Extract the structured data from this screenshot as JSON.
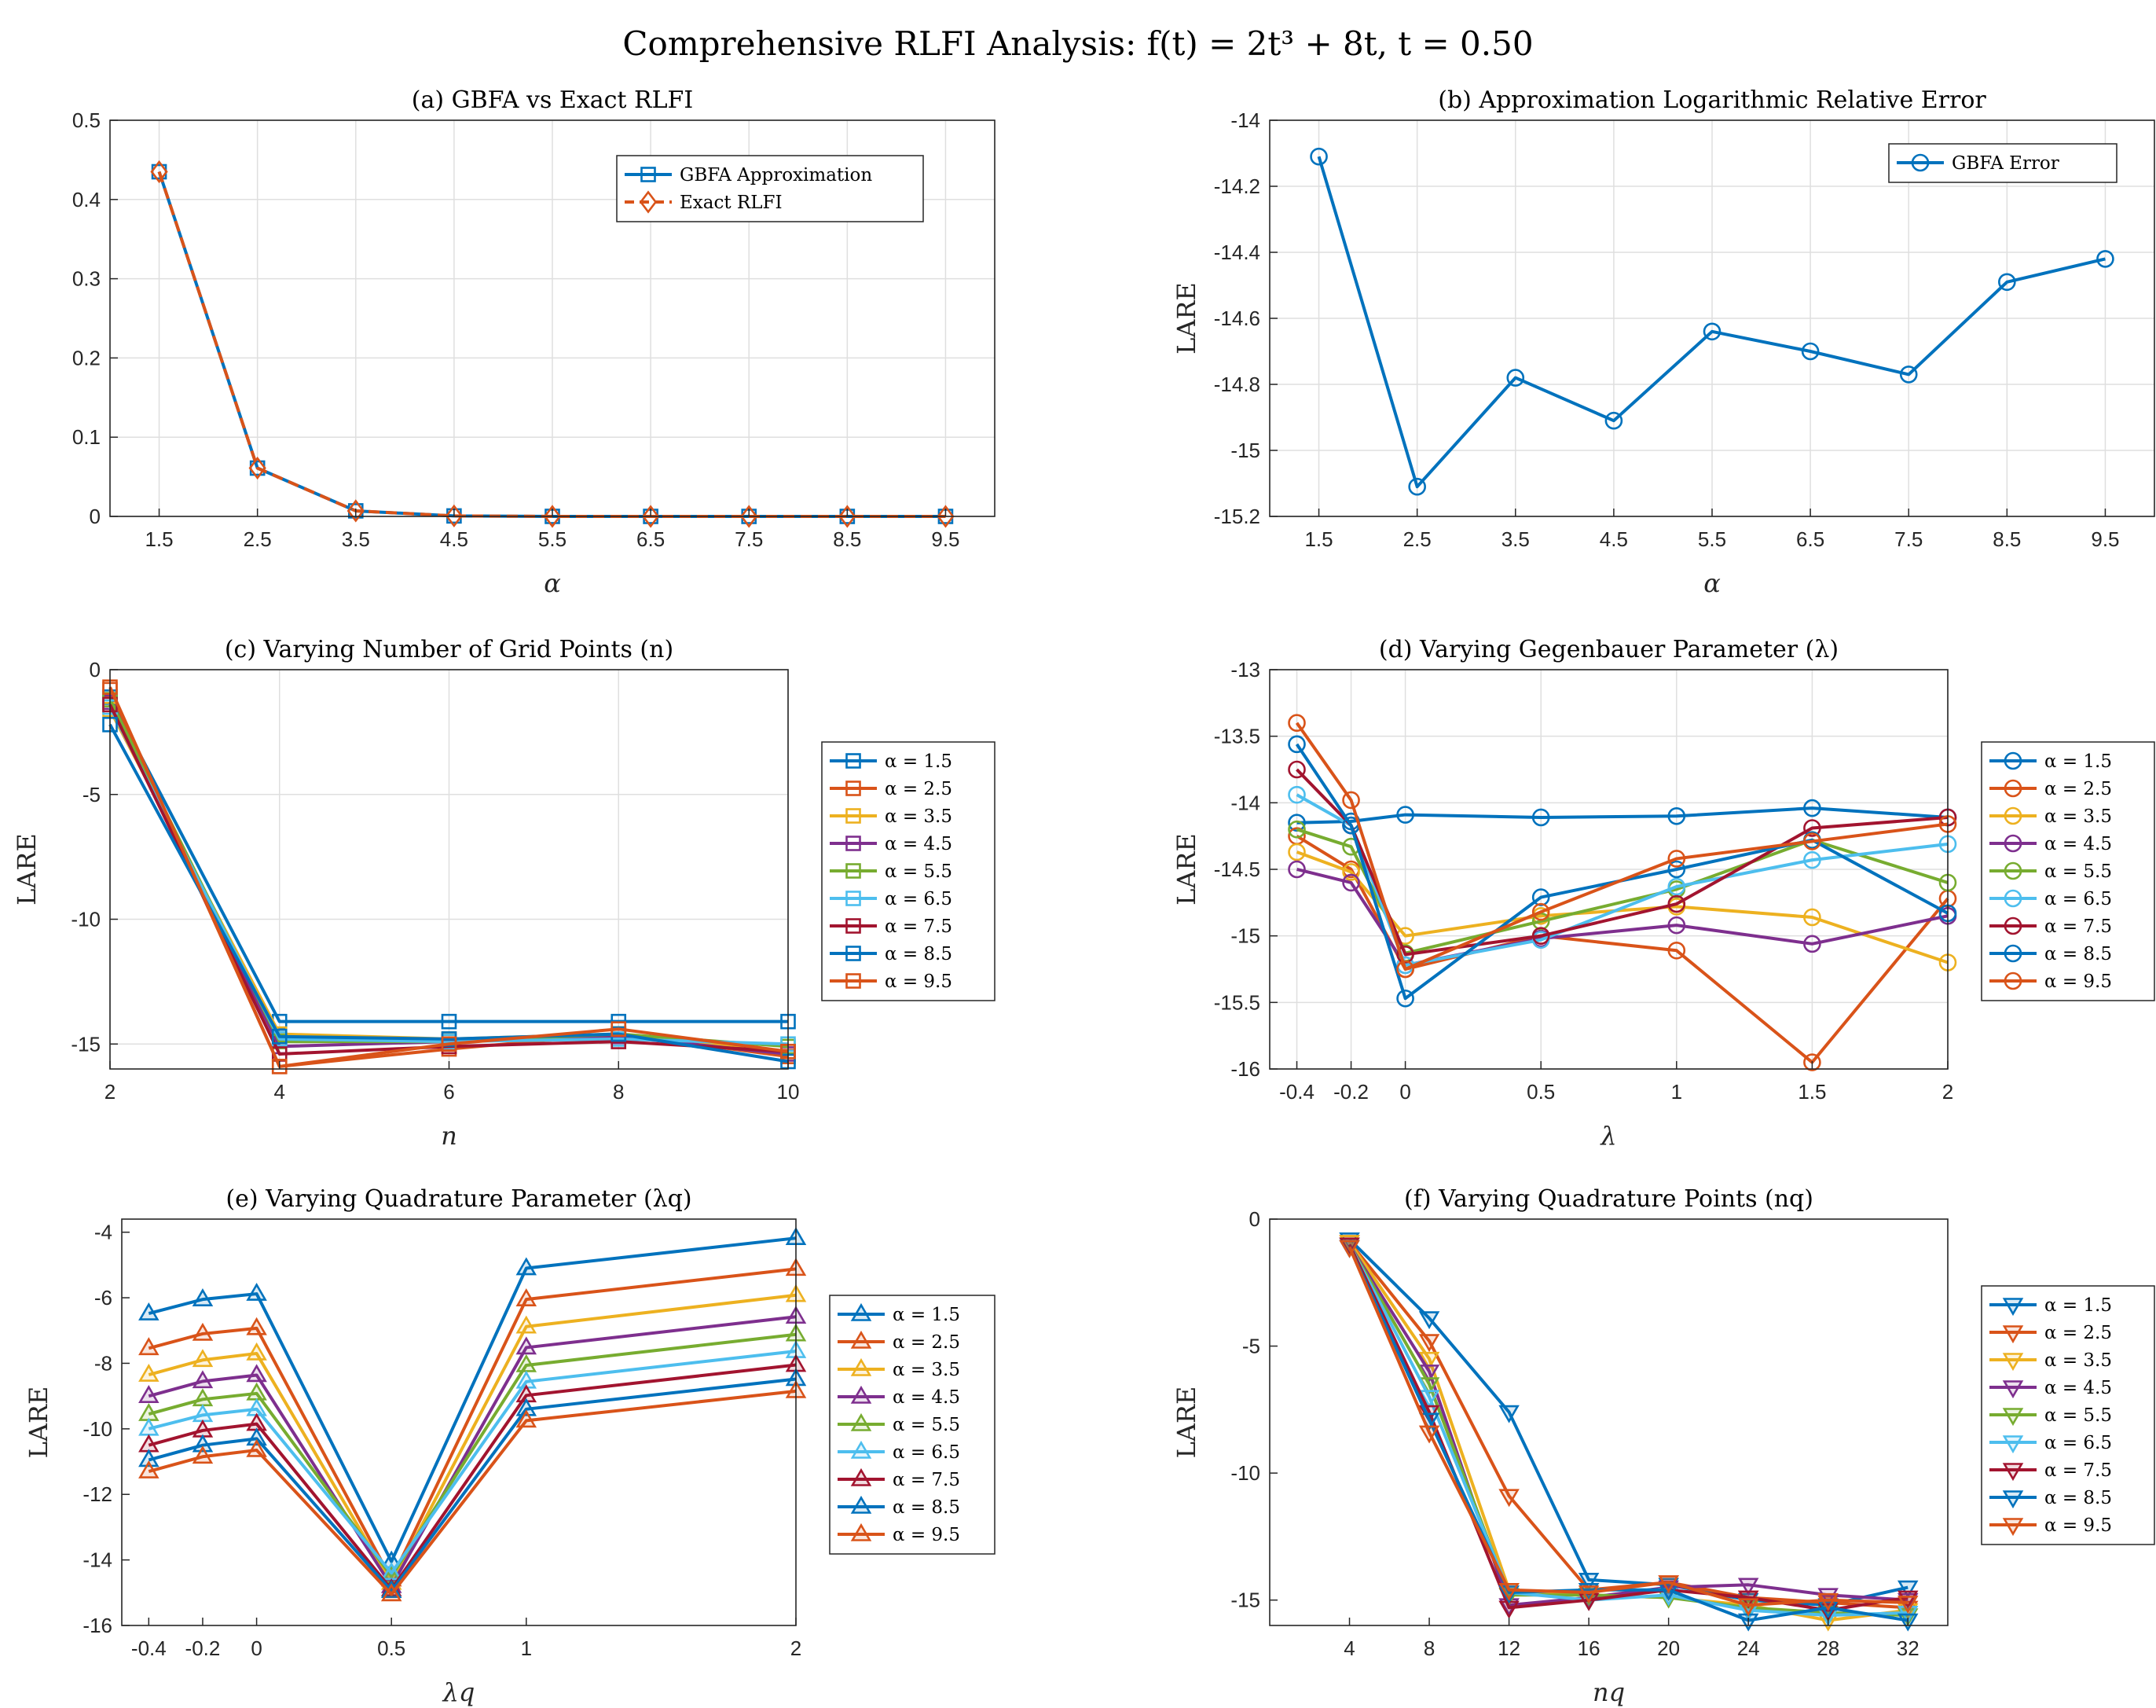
{
  "figure": {
    "title": "Comprehensive RLFI Analysis:  f(t) = 2t³ + 8t, t = 0.50"
  },
  "colors": [
    "#0072BD",
    "#D95319",
    "#EDB120",
    "#7E2F8E",
    "#77AC30",
    "#4DBEEE",
    "#A2142F",
    "#0072BD",
    "#D95319"
  ],
  "chart_data": [
    {
      "id": "a",
      "type": "line",
      "title": "(a) GBFA vs Exact RLFI",
      "xlabel": "α",
      "ylabel": "",
      "x": [
        1.5,
        2.5,
        3.5,
        4.5,
        5.5,
        6.5,
        7.5,
        8.5,
        9.5
      ],
      "x_ticks": [
        "1.5",
        "2.5",
        "3.5",
        "4.5",
        "5.5",
        "6.5",
        "7.5",
        "8.5",
        "9.5"
      ],
      "y_ticks": [
        "0",
        "0.1",
        "0.2",
        "0.3",
        "0.4",
        "0.5"
      ],
      "xlim": [
        1,
        10
      ],
      "ylim": [
        0,
        0.5
      ],
      "grid": true,
      "legend": "top-right",
      "series": [
        {
          "name": "GBFA Approximation",
          "color": "#0072BD",
          "marker": "square",
          "dashed": false,
          "values": [
            0.435,
            0.061,
            0.007,
            0.0006,
            4e-05,
            2e-06,
            0.0,
            0.0,
            0.0
          ]
        },
        {
          "name": "Exact RLFI",
          "color": "#D95319",
          "marker": "diamond",
          "dashed": true,
          "values": [
            0.435,
            0.061,
            0.007,
            0.0006,
            4e-05,
            2e-06,
            0.0,
            0.0,
            0.0
          ]
        }
      ]
    },
    {
      "id": "b",
      "type": "line",
      "title": "(b) Approximation Logarithmic Relative Error",
      "xlabel": "α",
      "ylabel": "LARE",
      "x": [
        1.5,
        2.5,
        3.5,
        4.5,
        5.5,
        6.5,
        7.5,
        8.5,
        9.5
      ],
      "x_ticks": [
        "1.5",
        "2.5",
        "3.5",
        "4.5",
        "5.5",
        "6.5",
        "7.5",
        "8.5",
        "9.5"
      ],
      "y_ticks": [
        "-15.2",
        "-15",
        "-14.8",
        "-14.6",
        "-14.4",
        "-14.2",
        "-14"
      ],
      "xlim": [
        1,
        10
      ],
      "ylim": [
        -15.2,
        -14
      ],
      "grid": true,
      "legend": "top-right",
      "series": [
        {
          "name": "GBFA Error",
          "color": "#0072BD",
          "marker": "circle",
          "dashed": false,
          "values": [
            -14.11,
            -15.11,
            -14.78,
            -14.91,
            -14.64,
            -14.7,
            -14.77,
            -14.49,
            -14.42
          ]
        }
      ]
    },
    {
      "id": "c",
      "type": "line",
      "title": "(c) Varying Number of Grid Points (n)",
      "xlabel": "n",
      "ylabel": "LARE",
      "x": [
        2,
        4,
        6,
        8,
        10
      ],
      "x_ticks": [
        "2",
        "4",
        "6",
        "8",
        "10"
      ],
      "y_ticks": [
        "-15",
        "-10",
        "-5",
        "0"
      ],
      "xlim": [
        2,
        10
      ],
      "ylim": [
        -16,
        0
      ],
      "grid": true,
      "legend": "outside-right",
      "marker": "square",
      "series": [
        {
          "name": "α = 1.5",
          "values": [
            -1.1,
            -14.1,
            -14.1,
            -14.1,
            -14.1
          ]
        },
        {
          "name": "α = 2.5",
          "values": [
            -0.8,
            -15.9,
            -15.2,
            -14.6,
            -15.5
          ]
        },
        {
          "name": "α = 3.5",
          "values": [
            -1.6,
            -14.6,
            -14.8,
            -14.6,
            -15.3
          ]
        },
        {
          "name": "α = 4.5",
          "values": [
            -1.3,
            -15.1,
            -14.9,
            -14.7,
            -15.4
          ]
        },
        {
          "name": "α = 5.5",
          "values": [
            -1.2,
            -14.9,
            -14.9,
            -14.6,
            -15.1
          ]
        },
        {
          "name": "α = 6.5",
          "values": [
            -1.5,
            -14.8,
            -14.9,
            -14.8,
            -15.0
          ]
        },
        {
          "name": "α = 7.5",
          "values": [
            -1.4,
            -15.4,
            -15.1,
            -14.9,
            -15.3
          ]
        },
        {
          "name": "α = 8.5",
          "values": [
            -2.2,
            -14.7,
            -14.8,
            -14.6,
            -15.7
          ]
        },
        {
          "name": "α = 9.5",
          "values": [
            -0.7,
            -15.9,
            -15.0,
            -14.4,
            -15.3
          ]
        }
      ]
    },
    {
      "id": "d",
      "type": "line",
      "title": "(d) Varying Gegenbauer Parameter (λ)",
      "xlabel": "λ",
      "ylabel": "LARE",
      "x": [
        -0.4,
        -0.2,
        0,
        0.5,
        1,
        1.5,
        2
      ],
      "x_ticks": [
        "-0.4",
        "-0.2",
        "0",
        "0.5",
        "1",
        "1.5",
        "2"
      ],
      "y_ticks": [
        "-16",
        "-15.5",
        "-15",
        "-14.5",
        "-14",
        "-13.5",
        "-13"
      ],
      "xlim": [
        -0.5,
        2
      ],
      "ylim": [
        -16,
        -13
      ],
      "grid": true,
      "legend": "outside-right",
      "marker": "circle",
      "series": [
        {
          "name": "α = 1.5",
          "values": [
            -14.15,
            -14.14,
            -14.09,
            -14.11,
            -14.1,
            -14.04,
            -14.11
          ]
        },
        {
          "name": "α = 2.5",
          "values": [
            -14.25,
            -14.5,
            -15.25,
            -15.0,
            -15.11,
            -15.95,
            -14.72
          ]
        },
        {
          "name": "α = 3.5",
          "values": [
            -14.37,
            -14.52,
            -15.0,
            -14.85,
            -14.78,
            -14.86,
            -15.2
          ]
        },
        {
          "name": "α = 4.5",
          "values": [
            -14.5,
            -14.6,
            -15.22,
            -15.02,
            -14.92,
            -15.06,
            -14.85
          ]
        },
        {
          "name": "α = 5.5",
          "values": [
            -14.2,
            -14.33,
            -15.13,
            -14.89,
            -14.65,
            -14.28,
            -14.6
          ]
        },
        {
          "name": "α = 6.5",
          "values": [
            -13.94,
            -14.17,
            -15.22,
            -15.03,
            -14.63,
            -14.43,
            -14.31
          ]
        },
        {
          "name": "α = 7.5",
          "values": [
            -13.75,
            -14.17,
            -15.14,
            -15.0,
            -14.76,
            -14.19,
            -14.11
          ]
        },
        {
          "name": "α = 8.5",
          "values": [
            -13.56,
            -14.17,
            -15.47,
            -14.71,
            -14.5,
            -14.28,
            -14.83
          ]
        },
        {
          "name": "α = 9.5",
          "values": [
            -13.4,
            -13.98,
            -15.25,
            -14.82,
            -14.42,
            -14.29,
            -14.16
          ]
        }
      ]
    },
    {
      "id": "e",
      "type": "line",
      "title": "(e) Varying Quadrature Parameter (λq)",
      "xlabel": "λq",
      "ylabel": "LARE",
      "x": [
        -0.4,
        -0.2,
        0,
        0.5,
        1,
        2
      ],
      "x_ticks": [
        "-0.4",
        "-0.2",
        "0",
        "0.5",
        "1",
        "2"
      ],
      "y_ticks": [
        "-16",
        "-14",
        "-12",
        "-10",
        "-8",
        "-6",
        "-4"
      ],
      "xlim": [
        -0.5,
        2
      ],
      "ylim": [
        -16,
        -3.6
      ],
      "grid": false,
      "legend": "outside-right",
      "marker": "triangle-up",
      "series": [
        {
          "name": "α = 1.5",
          "values": [
            -6.48,
            -6.05,
            -5.88,
            -14.05,
            -5.1,
            -4.18
          ]
        },
        {
          "name": "α = 2.5",
          "values": [
            -7.54,
            -7.1,
            -6.93,
            -14.6,
            -6.05,
            -5.12
          ]
        },
        {
          "name": "α = 3.5",
          "values": [
            -8.35,
            -7.9,
            -7.7,
            -14.7,
            -6.88,
            -5.92
          ]
        },
        {
          "name": "α = 4.5",
          "values": [
            -9.0,
            -8.55,
            -8.36,
            -14.8,
            -7.52,
            -6.58
          ]
        },
        {
          "name": "α = 5.5",
          "values": [
            -9.55,
            -9.1,
            -8.92,
            -14.5,
            -8.06,
            -7.12
          ]
        },
        {
          "name": "α = 6.5",
          "values": [
            -10.0,
            -9.58,
            -9.4,
            -14.4,
            -8.56,
            -7.63
          ]
        },
        {
          "name": "α = 7.5",
          "values": [
            -10.5,
            -10.05,
            -9.85,
            -14.9,
            -8.98,
            -8.05
          ]
        },
        {
          "name": "α = 8.5",
          "values": [
            -10.95,
            -10.5,
            -10.3,
            -14.95,
            -9.4,
            -8.48
          ]
        },
        {
          "name": "α = 9.5",
          "values": [
            -11.3,
            -10.85,
            -10.65,
            -15.05,
            -9.75,
            -8.85
          ]
        }
      ]
    },
    {
      "id": "f",
      "type": "line",
      "title": "(f) Varying Quadrature Points (nq)",
      "xlabel": "nq",
      "ylabel": "LARE",
      "x": [
        4,
        8,
        12,
        16,
        20,
        24,
        28,
        32
      ],
      "x_ticks": [
        "4",
        "8",
        "12",
        "16",
        "20",
        "24",
        "28",
        "32"
      ],
      "y_ticks": [
        "-15",
        "-10",
        "-5",
        "0"
      ],
      "xlim": [
        0,
        34
      ],
      "ylim": [
        -16,
        0
      ],
      "grid": false,
      "legend": "outside-right",
      "marker": "triangle-down",
      "series": [
        {
          "name": "α = 1.5",
          "values": [
            -0.8,
            -3.9,
            -7.6,
            -14.2,
            -14.4,
            -15.0,
            -15.2,
            -14.5
          ]
        },
        {
          "name": "α = 2.5",
          "values": [
            -0.9,
            -4.8,
            -10.9,
            -14.6,
            -14.3,
            -14.9,
            -15.1,
            -15.3
          ]
        },
        {
          "name": "α = 3.5",
          "values": [
            -0.9,
            -5.5,
            -14.6,
            -14.8,
            -14.9,
            -15.2,
            -15.8,
            -15.4
          ]
        },
        {
          "name": "α = 4.5",
          "values": [
            -1.0,
            -6.0,
            -15.2,
            -14.9,
            -14.5,
            -14.4,
            -14.8,
            -15.0
          ]
        },
        {
          "name": "α = 5.5",
          "values": [
            -1.0,
            -6.5,
            -14.8,
            -14.8,
            -14.9,
            -15.3,
            -15.5,
            -15.6
          ]
        },
        {
          "name": "α = 6.5",
          "values": [
            -1.0,
            -7.0,
            -14.7,
            -15.0,
            -14.8,
            -15.4,
            -15.6,
            -15.5
          ]
        },
        {
          "name": "α = 7.5",
          "values": [
            -1.0,
            -7.6,
            -15.3,
            -15.0,
            -14.6,
            -14.9,
            -15.4,
            -14.9
          ]
        },
        {
          "name": "α = 8.5",
          "values": [
            -1.1,
            -7.9,
            -14.7,
            -14.6,
            -14.6,
            -15.8,
            -15.3,
            -15.8
          ]
        },
        {
          "name": "α = 9.5",
          "values": [
            -1.1,
            -8.4,
            -14.6,
            -14.7,
            -14.3,
            -15.2,
            -15.0,
            -15.1
          ]
        }
      ]
    }
  ]
}
